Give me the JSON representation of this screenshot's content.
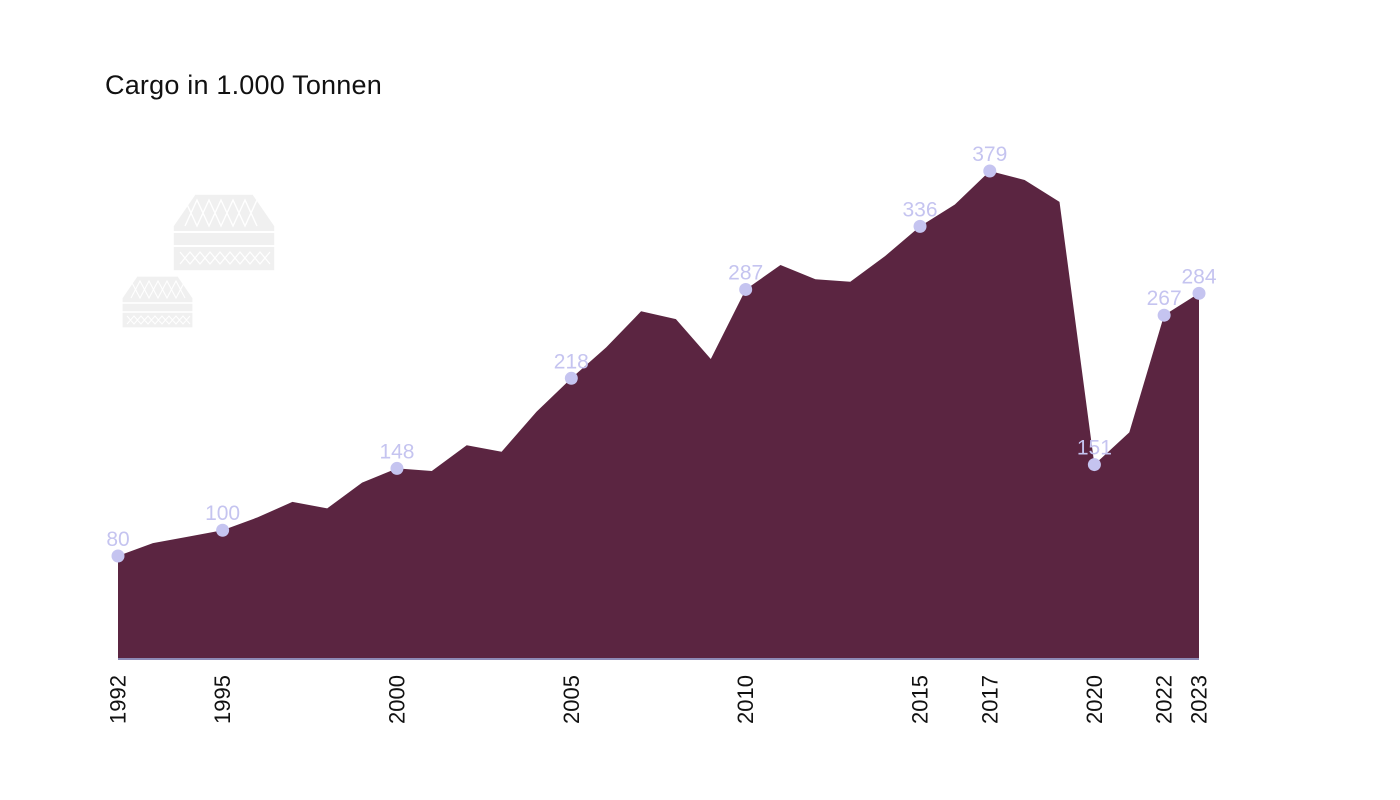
{
  "chart_data": {
    "type": "area",
    "title": "Cargo in 1.000 Tonnen",
    "xlabel": "",
    "ylabel": "",
    "ylim": [
      0,
      400
    ],
    "grid": false,
    "legend": "none",
    "x": [
      1992,
      1993,
      1994,
      1995,
      1996,
      1997,
      1998,
      1999,
      2000,
      2001,
      2002,
      2003,
      2004,
      2005,
      2006,
      2007,
      2008,
      2009,
      2010,
      2011,
      2012,
      2013,
      2014,
      2015,
      2016,
      2017,
      2018,
      2019,
      2020,
      2021,
      2022,
      2023
    ],
    "series": [
      {
        "values": [
          80,
          90,
          95,
          100,
          110,
          122,
          117,
          137,
          148,
          146,
          166,
          161,
          192,
          218,
          242,
          270,
          264,
          233,
          287,
          306,
          295,
          293,
          313,
          336,
          353,
          379,
          372,
          355,
          151,
          176,
          267,
          284
        ]
      }
    ],
    "tick_labels": [
      "1992",
      "1995",
      "2000",
      "2005",
      "2010",
      "2015",
      "2017",
      "2020",
      "2022",
      "2023"
    ],
    "data_labels": [
      {
        "x": 1992,
        "text": "80"
      },
      {
        "x": 1995,
        "text": "100"
      },
      {
        "x": 2000,
        "text": "148"
      },
      {
        "x": 2005,
        "text": "218"
      },
      {
        "x": 2010,
        "text": "287"
      },
      {
        "x": 2015,
        "text": "336"
      },
      {
        "x": 2017,
        "text": "379"
      },
      {
        "x": 2020,
        "text": "151"
      },
      {
        "x": 2022,
        "text": "267"
      },
      {
        "x": 2023,
        "text": "284"
      }
    ],
    "colors": {
      "area": "#5b2541",
      "marker": "#c5c4f0",
      "data_label": "#c5c4f0",
      "baseline": "#8d8ab6",
      "decoration": "#f0f0f0"
    },
    "decoration_icons": [
      "cargo-container-icon",
      "cargo-container-icon"
    ]
  }
}
